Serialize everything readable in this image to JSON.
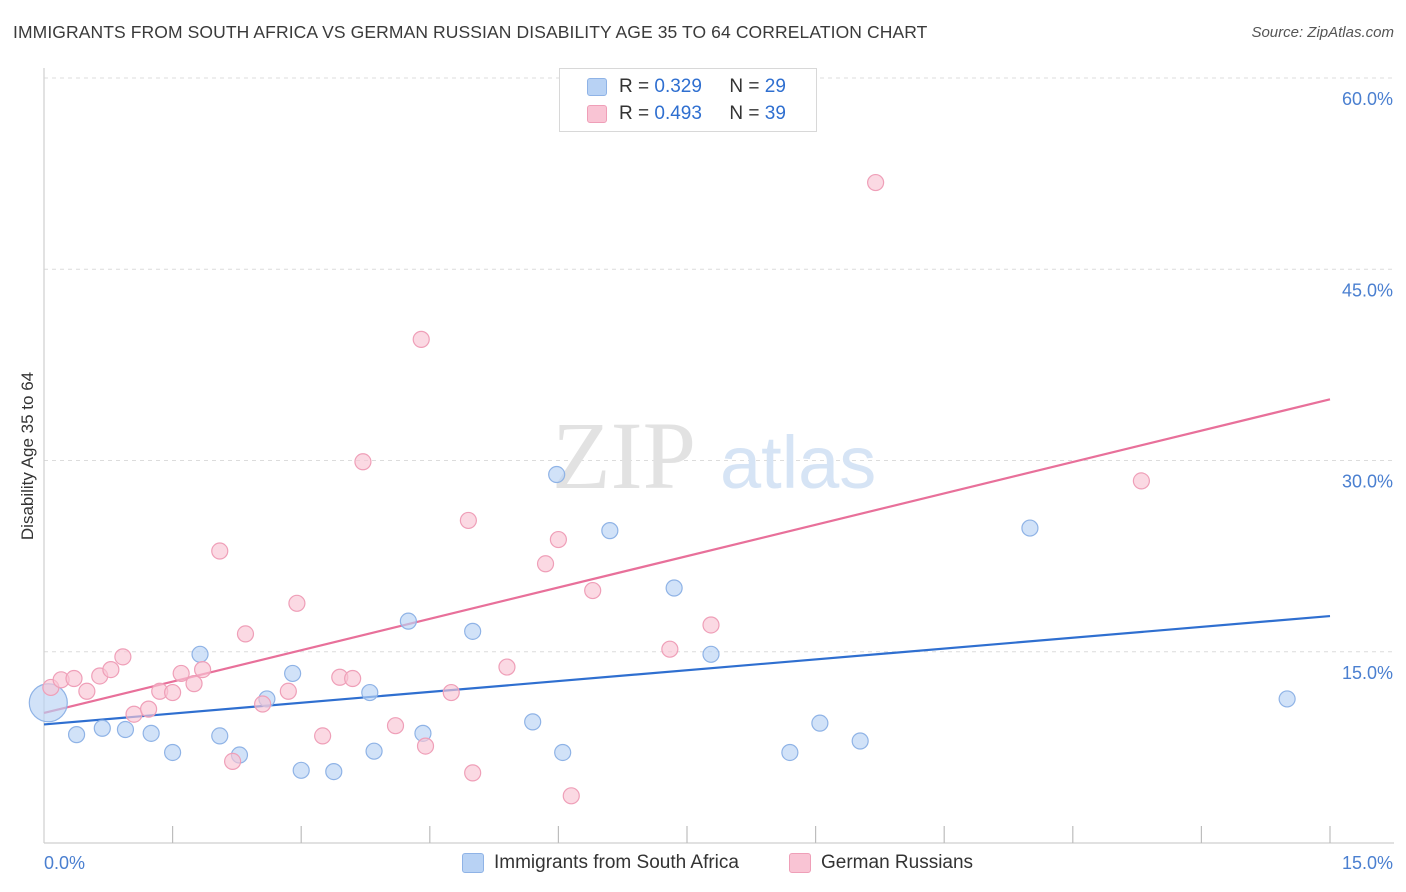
{
  "title": "IMMIGRANTS FROM SOUTH AFRICA VS GERMAN RUSSIAN DISABILITY AGE 35 TO 64 CORRELATION CHART",
  "source": "Source: ZipAtlas.com",
  "watermark": {
    "zip": "ZIP",
    "atlas": "atlas"
  },
  "legend": {
    "r_label": "R =",
    "n_label": "N =",
    "series": [
      {
        "r": "0.329",
        "n": "29"
      },
      {
        "r": "0.493",
        "n": "39"
      }
    ]
  },
  "bottom_legend": [
    "Immigrants from South Africa",
    "German Russians"
  ],
  "colors": {
    "blue_fill": "#b8d2f4",
    "blue_stroke": "#8fb3e6",
    "blue_line": "#2f6fd0",
    "pink_fill": "#f9c4d4",
    "pink_stroke": "#ef9fb8",
    "pink_line": "#e8709a",
    "tick_text": "#4a7fd0",
    "grid": "#dcdcdc"
  },
  "chart_data": {
    "type": "scatter",
    "title": "IMMIGRANTS FROM SOUTH AFRICA VS GERMAN RUSSIAN DISABILITY AGE 35 TO 64 CORRELATION CHART",
    "xlabel": "",
    "ylabel": "Disability Age 35 to 64",
    "xlim": [
      0,
      15
    ],
    "ylim": [
      0,
      60
    ],
    "x_tick_labels": [
      "0.0%",
      "15.0%"
    ],
    "y_ticks": [
      15,
      30,
      45,
      60
    ],
    "y_tick_labels": [
      "15.0%",
      "30.0%",
      "45.0%",
      "60.0%"
    ],
    "series": [
      {
        "name": "Immigrants from South Africa",
        "color": "blue",
        "r": 0.329,
        "n": 29,
        "trend": {
          "x": [
            0,
            15
          ],
          "y": [
            9.3,
            17.8
          ]
        },
        "points": [
          {
            "x": 0.05,
            "y": 11.0,
            "big": true
          },
          {
            "x": 0.38,
            "y": 8.5
          },
          {
            "x": 0.68,
            "y": 9.0
          },
          {
            "x": 0.95,
            "y": 8.9
          },
          {
            "x": 1.25,
            "y": 8.6
          },
          {
            "x": 1.5,
            "y": 7.1
          },
          {
            "x": 1.82,
            "y": 14.8
          },
          {
            "x": 2.05,
            "y": 8.4
          },
          {
            "x": 2.28,
            "y": 6.9
          },
          {
            "x": 2.6,
            "y": 11.3
          },
          {
            "x": 3.0,
            "y": 5.7
          },
          {
            "x": 2.9,
            "y": 13.3
          },
          {
            "x": 3.38,
            "y": 5.6
          },
          {
            "x": 3.8,
            "y": 11.8
          },
          {
            "x": 3.85,
            "y": 7.2
          },
          {
            "x": 4.25,
            "y": 17.4
          },
          {
            "x": 4.42,
            "y": 8.6
          },
          {
            "x": 5.0,
            "y": 16.6
          },
          {
            "x": 5.7,
            "y": 9.5
          },
          {
            "x": 5.98,
            "y": 28.9
          },
          {
            "x": 6.05,
            "y": 7.1
          },
          {
            "x": 6.6,
            "y": 24.5
          },
          {
            "x": 7.35,
            "y": 20.0
          },
          {
            "x": 7.78,
            "y": 14.8
          },
          {
            "x": 8.7,
            "y": 7.1
          },
          {
            "x": 9.05,
            "y": 9.4
          },
          {
            "x": 9.52,
            "y": 8.0
          },
          {
            "x": 11.5,
            "y": 24.7
          },
          {
            "x": 14.5,
            "y": 11.3
          }
        ]
      },
      {
        "name": "German Russians",
        "color": "pink",
        "r": 0.493,
        "n": 39,
        "trend": {
          "x": [
            0,
            15
          ],
          "y": [
            10.2,
            34.8
          ]
        },
        "points": [
          {
            "x": 0.08,
            "y": 12.2
          },
          {
            "x": 0.2,
            "y": 12.8
          },
          {
            "x": 0.35,
            "y": 12.9
          },
          {
            "x": 0.5,
            "y": 11.9
          },
          {
            "x": 0.65,
            "y": 13.1
          },
          {
            "x": 0.78,
            "y": 13.6
          },
          {
            "x": 0.92,
            "y": 14.6
          },
          {
            "x": 1.05,
            "y": 10.1
          },
          {
            "x": 1.22,
            "y": 10.5
          },
          {
            "x": 1.35,
            "y": 11.9
          },
          {
            "x": 1.5,
            "y": 11.8
          },
          {
            "x": 1.6,
            "y": 13.3
          },
          {
            "x": 1.75,
            "y": 12.5
          },
          {
            "x": 1.85,
            "y": 13.6
          },
          {
            "x": 2.05,
            "y": 22.9
          },
          {
            "x": 2.2,
            "y": 6.4
          },
          {
            "x": 2.35,
            "y": 16.4
          },
          {
            "x": 2.55,
            "y": 10.9
          },
          {
            "x": 2.85,
            "y": 11.9
          },
          {
            "x": 2.95,
            "y": 18.8
          },
          {
            "x": 3.25,
            "y": 8.4
          },
          {
            "x": 3.45,
            "y": 13.0
          },
          {
            "x": 3.6,
            "y": 12.9
          },
          {
            "x": 3.72,
            "y": 29.9
          },
          {
            "x": 4.1,
            "y": 9.2
          },
          {
            "x": 4.45,
            "y": 7.6
          },
          {
            "x": 4.4,
            "y": 39.5
          },
          {
            "x": 4.75,
            "y": 11.8
          },
          {
            "x": 5.0,
            "y": 5.5
          },
          {
            "x": 4.95,
            "y": 25.3
          },
          {
            "x": 5.4,
            "y": 13.8
          },
          {
            "x": 5.85,
            "y": 21.9
          },
          {
            "x": 6.0,
            "y": 23.8
          },
          {
            "x": 6.15,
            "y": 3.7
          },
          {
            "x": 6.4,
            "y": 19.8
          },
          {
            "x": 7.3,
            "y": 15.2
          },
          {
            "x": 7.78,
            "y": 17.1
          },
          {
            "x": 9.7,
            "y": 51.8
          },
          {
            "x": 12.8,
            "y": 28.4
          }
        ]
      }
    ]
  }
}
